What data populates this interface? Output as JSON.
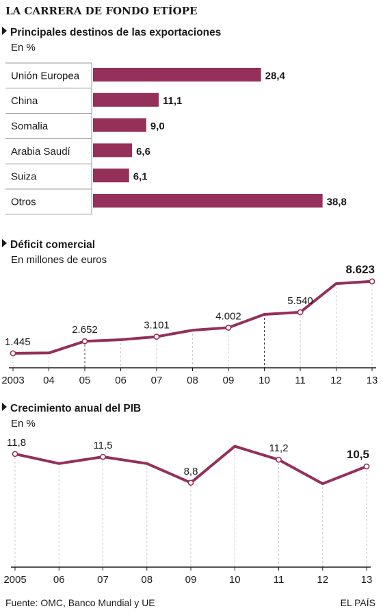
{
  "header": {
    "title": "LA CARRERA DE FONDO ETÍOPE"
  },
  "colors": {
    "accent": "#94305a",
    "text": "#1a1a1a",
    "rule": "#9a9a9a",
    "grid": "#c8c8c8"
  },
  "chart_data": [
    {
      "type": "bar",
      "title": "Principales destinos de las exportaciones",
      "subtitle": "En %",
      "categories": [
        "Unión Europea",
        "China",
        "Somalia",
        "Arabia Saudí",
        "Suiza",
        "Otros"
      ],
      "values": [
        28.4,
        11.1,
        9.0,
        6.6,
        6.1,
        38.8
      ],
      "value_labels": [
        "28,4",
        "11,1",
        "9,0",
        "6,6",
        "6,1",
        "38,8"
      ],
      "orientation": "horizontal",
      "xlim": [
        0,
        40
      ]
    },
    {
      "type": "line",
      "title": "Déficit comercial",
      "subtitle": "En millones de euros",
      "x": [
        "2003",
        "04",
        "05",
        "06",
        "07",
        "08",
        "09",
        "10",
        "11",
        "12",
        "13"
      ],
      "values": [
        1445,
        1480,
        2652,
        2800,
        3101,
        3750,
        4002,
        5330,
        5540,
        8400,
        8623
      ],
      "labels": [
        {
          "index": 0,
          "text": "1.445"
        },
        {
          "index": 2,
          "text": "2.652"
        },
        {
          "index": 4,
          "text": "3.101"
        },
        {
          "index": 6,
          "text": "4.002"
        },
        {
          "index": 8,
          "text": "5.540"
        },
        {
          "index": 10,
          "text": "8.623",
          "bold": true
        }
      ],
      "markers": [
        0,
        2,
        4,
        6,
        8,
        10
      ],
      "ylim": [
        0,
        9500
      ],
      "grid": true
    },
    {
      "type": "line",
      "title": "Crecimiento anual del PIB",
      "subtitle": "En %",
      "x": [
        "2005",
        "06",
        "07",
        "08",
        "09",
        "10",
        "11",
        "12",
        "13"
      ],
      "values": [
        11.8,
        10.8,
        11.5,
        10.8,
        8.8,
        12.6,
        11.2,
        8.7,
        10.5
      ],
      "labels": [
        {
          "index": 0,
          "text": "11,8"
        },
        {
          "index": 2,
          "text": "11,5"
        },
        {
          "index": 4,
          "text": "8,8"
        },
        {
          "index": 6,
          "text": "11,2"
        },
        {
          "index": 8,
          "text": "10,5",
          "bold": true
        }
      ],
      "markers": [
        0,
        2,
        4,
        6,
        8
      ],
      "ylim": [
        0,
        14
      ],
      "grid": true
    }
  ],
  "footer": {
    "source": "Fuente: OMC, Banco Mundial y UE",
    "brand": "EL PAÍS"
  }
}
